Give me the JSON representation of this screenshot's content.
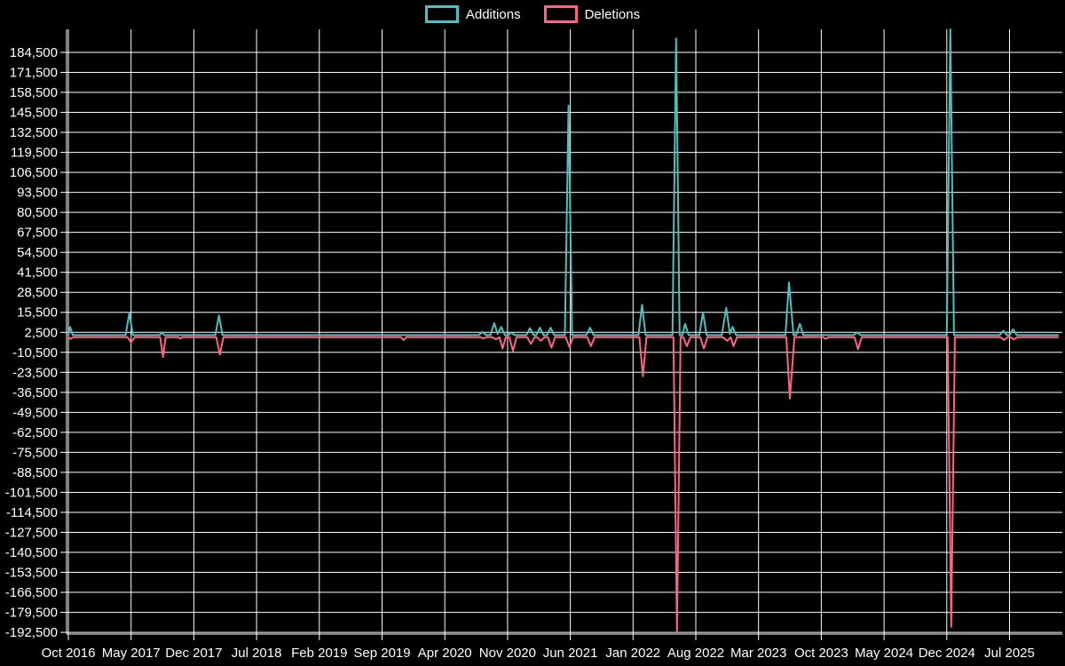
{
  "legend": {
    "items": [
      {
        "label": "Additions",
        "color": "#4bc0c0"
      },
      {
        "label": "Deletions",
        "color": "#ff6384"
      }
    ]
  },
  "colors": {
    "background": "#000000",
    "grid": "#ffffff",
    "axis": "#ffffff",
    "text": "#ffffff",
    "additions": "#4bc0c0",
    "deletions": "#ff6384"
  },
  "chart_data": {
    "type": "line",
    "title": "",
    "xlabel": "",
    "ylabel": "",
    "legend_position": "top-center",
    "grid": true,
    "x_unit": "months since Oct 2016",
    "y_tick_step": 13000,
    "ylim": [
      -193600,
      199500
    ],
    "y_ticks": [
      {
        "v": 184500,
        "label": "184,500"
      },
      {
        "v": 171500,
        "label": "171,500"
      },
      {
        "v": 158500,
        "label": "158,500"
      },
      {
        "v": 145500,
        "label": "145,500"
      },
      {
        "v": 132500,
        "label": "132,500"
      },
      {
        "v": 119500,
        "label": "119,500"
      },
      {
        "v": 106500,
        "label": "106,500"
      },
      {
        "v": 93500,
        "label": "93,500"
      },
      {
        "v": 80500,
        "label": "80,500"
      },
      {
        "v": 67500,
        "label": "67,500"
      },
      {
        "v": 54500,
        "label": "54,500"
      },
      {
        "v": 41500,
        "label": "41,500"
      },
      {
        "v": 28500,
        "label": "28,500"
      },
      {
        "v": 15500,
        "label": "15,500"
      },
      {
        "v": 2500,
        "label": "2,500"
      },
      {
        "v": -10500,
        "label": "-10,500"
      },
      {
        "v": -23500,
        "label": "-23,500"
      },
      {
        "v": -36500,
        "label": "-36,500"
      },
      {
        "v": -49500,
        "label": "-49,500"
      },
      {
        "v": -62500,
        "label": "-62,500"
      },
      {
        "v": -75500,
        "label": "-75,500"
      },
      {
        "v": -88500,
        "label": "-88,500"
      },
      {
        "v": -101500,
        "label": "-101,500"
      },
      {
        "v": -114500,
        "label": "-114,500"
      },
      {
        "v": -127500,
        "label": "-127,500"
      },
      {
        "v": -140500,
        "label": "-140,500"
      },
      {
        "v": -153500,
        "label": "-153,500"
      },
      {
        "v": -166500,
        "label": "-166,500"
      },
      {
        "v": -179500,
        "label": "-179,500"
      },
      {
        "v": -192500,
        "label": "-192,500"
      }
    ],
    "x_ticks": [
      {
        "m": 0,
        "label": "Oct 2016"
      },
      {
        "m": 7,
        "label": "May 2017"
      },
      {
        "m": 14,
        "label": "Dec 2017"
      },
      {
        "m": 21,
        "label": "Jul 2018"
      },
      {
        "m": 28,
        "label": "Feb 2019"
      },
      {
        "m": 35,
        "label": "Sep 2019"
      },
      {
        "m": 42,
        "label": "Apr 2020"
      },
      {
        "m": 49,
        "label": "Nov 2020"
      },
      {
        "m": 56,
        "label": "Jun 2021"
      },
      {
        "m": 63,
        "label": "Jan 2022"
      },
      {
        "m": 70,
        "label": "Aug 2022"
      },
      {
        "m": 77,
        "label": "Mar 2023"
      },
      {
        "m": 84,
        "label": "Oct 2023"
      },
      {
        "m": 91,
        "label": "May 2024"
      },
      {
        "m": 98,
        "label": "Dec 2024"
      },
      {
        "m": 105,
        "label": "Jul 2025"
      }
    ],
    "series": [
      {
        "name": "Deletions",
        "color": "#ff6384",
        "points": [
          [
            0,
            -700
          ],
          [
            0.25,
            -1800
          ],
          [
            0.55,
            -700
          ],
          [
            6.6,
            -700
          ],
          [
            7,
            -4000
          ],
          [
            7.4,
            -700
          ],
          [
            10.25,
            -700
          ],
          [
            10.55,
            -13500
          ],
          [
            10.85,
            -700
          ],
          [
            12.3,
            -700
          ],
          [
            12.5,
            -1600
          ],
          [
            12.7,
            -700
          ],
          [
            16.5,
            -700
          ],
          [
            16.9,
            -12000
          ],
          [
            17.3,
            -700
          ],
          [
            37.1,
            -700
          ],
          [
            37.4,
            -2500
          ],
          [
            37.7,
            -700
          ],
          [
            46,
            -700
          ],
          [
            46.3,
            -1500
          ],
          [
            46.6,
            -700
          ],
          [
            47.3,
            -700
          ],
          [
            47.7,
            -2000
          ],
          [
            48.1,
            -700
          ],
          [
            48.45,
            -8000
          ],
          [
            48.8,
            -700
          ],
          [
            49.2,
            -700
          ],
          [
            49.6,
            -9500
          ],
          [
            50,
            -700
          ],
          [
            51.2,
            -700
          ],
          [
            51.6,
            -5000
          ],
          [
            52,
            -700
          ],
          [
            52.3,
            -700
          ],
          [
            52.7,
            -3000
          ],
          [
            53.1,
            -700
          ],
          [
            53.5,
            -700
          ],
          [
            53.9,
            -7500
          ],
          [
            54.3,
            -700
          ],
          [
            55.5,
            -700
          ],
          [
            55.9,
            -7000
          ],
          [
            56.3,
            -700
          ],
          [
            57.9,
            -700
          ],
          [
            58.3,
            -6500
          ],
          [
            58.7,
            -700
          ],
          [
            63.7,
            -700
          ],
          [
            64.1,
            -26000
          ],
          [
            64.5,
            -700
          ],
          [
            67.5,
            -700
          ],
          [
            67.9,
            -192000
          ],
          [
            68.3,
            -700
          ],
          [
            68.6,
            -700
          ],
          [
            69,
            -6500
          ],
          [
            69.4,
            -700
          ],
          [
            70.5,
            -700
          ],
          [
            70.9,
            -8000
          ],
          [
            71.3,
            -700
          ],
          [
            73,
            -700
          ],
          [
            73.5,
            -3000
          ],
          [
            73.9,
            -700
          ],
          [
            74.2,
            -6500
          ],
          [
            74.6,
            -700
          ],
          [
            80.1,
            -700
          ],
          [
            80.5,
            -40500
          ],
          [
            81,
            -700
          ],
          [
            84.2,
            -700
          ],
          [
            84.5,
            -1800
          ],
          [
            84.8,
            -700
          ],
          [
            87.7,
            -700
          ],
          [
            88.1,
            -8500
          ],
          [
            88.5,
            -700
          ],
          [
            98.1,
            -700
          ],
          [
            98.5,
            -189000
          ],
          [
            98.9,
            -700
          ],
          [
            104,
            -700
          ],
          [
            104.4,
            -2500
          ],
          [
            104.8,
            -700
          ],
          [
            105.1,
            -700
          ],
          [
            105.5,
            -2000
          ],
          [
            105.9,
            -700
          ],
          [
            110.4,
            -700
          ]
        ]
      },
      {
        "name": "Additions",
        "color": "#4bc0c0",
        "points": [
          [
            0,
            700
          ],
          [
            0.2,
            6000
          ],
          [
            0.5,
            700
          ],
          [
            6.4,
            700
          ],
          [
            6.8,
            15000
          ],
          [
            7.2,
            700
          ],
          [
            10.2,
            700
          ],
          [
            10.45,
            2500
          ],
          [
            10.7,
            700
          ],
          [
            16.4,
            700
          ],
          [
            16.8,
            13500
          ],
          [
            17.2,
            700
          ],
          [
            45.8,
            700
          ],
          [
            46.2,
            2800
          ],
          [
            46.6,
            700
          ],
          [
            47.1,
            700
          ],
          [
            47.5,
            8500
          ],
          [
            47.9,
            1500
          ],
          [
            48.3,
            6000
          ],
          [
            48.7,
            700
          ],
          [
            49.1,
            700
          ],
          [
            49.4,
            2500
          ],
          [
            49.8,
            700
          ],
          [
            51.1,
            700
          ],
          [
            51.5,
            5200
          ],
          [
            51.9,
            700
          ],
          [
            52.2,
            700
          ],
          [
            52.6,
            5500
          ],
          [
            53,
            700
          ],
          [
            53.4,
            700
          ],
          [
            53.8,
            5500
          ],
          [
            54.2,
            700
          ],
          [
            55.4,
            700
          ],
          [
            55.8,
            150000
          ],
          [
            56.2,
            700
          ],
          [
            57.8,
            700
          ],
          [
            58.2,
            5500
          ],
          [
            58.6,
            700
          ],
          [
            63.6,
            700
          ],
          [
            64,
            20500
          ],
          [
            64.4,
            700
          ],
          [
            67.4,
            700
          ],
          [
            67.8,
            193500
          ],
          [
            68.2,
            700
          ],
          [
            68.5,
            700
          ],
          [
            68.8,
            8000
          ],
          [
            69.2,
            700
          ],
          [
            70.4,
            700
          ],
          [
            70.8,
            15500
          ],
          [
            71.2,
            700
          ],
          [
            72.9,
            700
          ],
          [
            73.4,
            18500
          ],
          [
            73.8,
            1500
          ],
          [
            74.1,
            6000
          ],
          [
            74.5,
            700
          ],
          [
            80,
            700
          ],
          [
            80.4,
            35000
          ],
          [
            80.9,
            700
          ],
          [
            81.2,
            700
          ],
          [
            81.6,
            8000
          ],
          [
            82,
            700
          ],
          [
            87.6,
            700
          ],
          [
            88,
            2500
          ],
          [
            88.4,
            700
          ],
          [
            98,
            700
          ],
          [
            98.4,
            201000
          ],
          [
            98.8,
            700
          ],
          [
            103.9,
            700
          ],
          [
            104.3,
            3500
          ],
          [
            104.7,
            700
          ],
          [
            105,
            700
          ],
          [
            105.4,
            4500
          ],
          [
            105.8,
            700
          ],
          [
            110.4,
            700
          ]
        ]
      }
    ]
  }
}
